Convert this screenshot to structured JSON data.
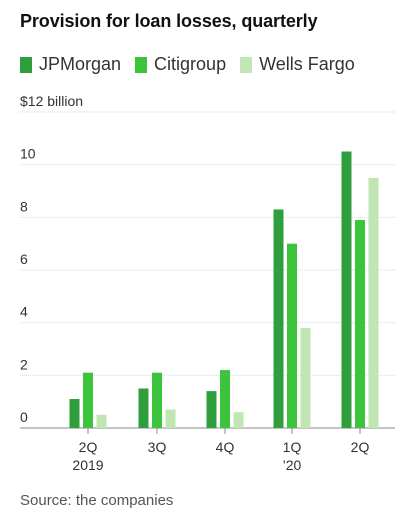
{
  "title": "Provision for loan losses, quarterly",
  "source": "Source: the companies",
  "chart_data": {
    "type": "bar",
    "title": "Provision for loan losses, quarterly",
    "ylabel": "",
    "ylim": [
      0,
      12
    ],
    "y_ticks": [
      {
        "value": 12,
        "label": "$12 billion"
      },
      {
        "value": 10,
        "label": "10"
      },
      {
        "value": 8,
        "label": "8"
      },
      {
        "value": 6,
        "label": "6"
      },
      {
        "value": 4,
        "label": "4"
      },
      {
        "value": 2,
        "label": "2"
      },
      {
        "value": 0,
        "label": "0"
      }
    ],
    "categories": [
      {
        "line1": "2Q",
        "line2": "2019"
      },
      {
        "line1": "3Q",
        "line2": ""
      },
      {
        "line1": "4Q",
        "line2": ""
      },
      {
        "line1": "1Q",
        "line2": "’20"
      },
      {
        "line1": "2Q",
        "line2": ""
      }
    ],
    "series": [
      {
        "name": "JPMorgan",
        "color": "#2f9e3c",
        "values": [
          1.1,
          1.5,
          1.4,
          8.3,
          10.5
        ]
      },
      {
        "name": "Citigroup",
        "color": "#3cc43c",
        "values": [
          2.1,
          2.1,
          2.2,
          7.0,
          7.9
        ]
      },
      {
        "name": "Wells Fargo",
        "color": "#bfe6b3",
        "values": [
          0.5,
          0.7,
          0.6,
          3.8,
          9.5
        ]
      }
    ],
    "grid": true,
    "legend_position": "top-left"
  }
}
